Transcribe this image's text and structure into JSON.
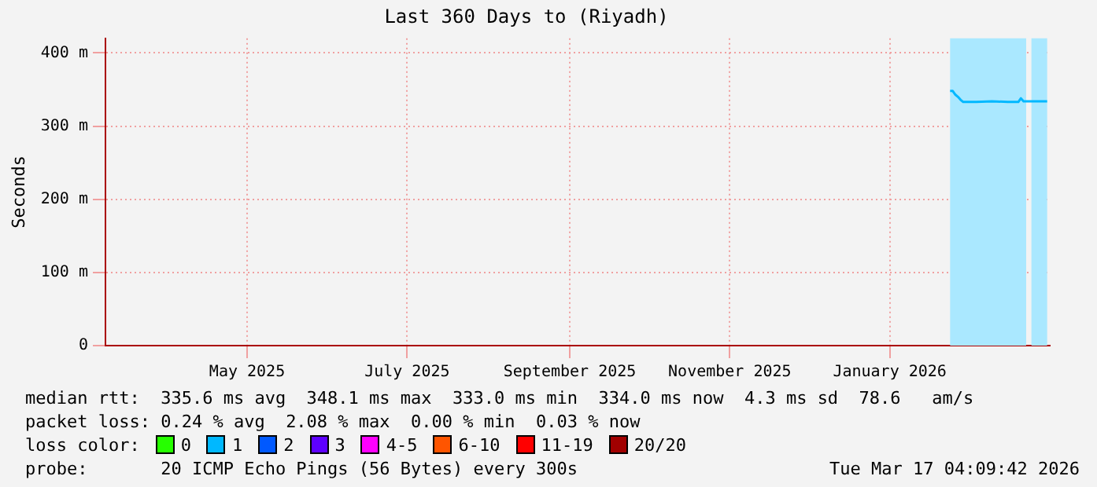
{
  "chart_data": {
    "type": "line",
    "title": "Last 360 Days to (Riyadh)",
    "ylabel": "Seconds",
    "legend_title": "loss color:",
    "legend": "bottom",
    "grid": true,
    "marker": "none",
    "xlim": [
      "2025-03-22",
      "2026-03-17"
    ],
    "xticks": [
      {
        "value": "2025-05-15",
        "label": "May 2025"
      },
      {
        "value": "2025-07-15",
        "label": "July 2025"
      },
      {
        "value": "2025-09-15",
        "label": "September 2025"
      },
      {
        "value": "2025-11-15",
        "label": "November 2025"
      },
      {
        "value": "2026-01-15",
        "label": "January 2026"
      }
    ],
    "ylim": [
      0,
      420
    ],
    "yticks": [
      0,
      {
        "value": 100,
        "label": "100 m"
      },
      {
        "value": 200,
        "label": "200 m"
      },
      {
        "value": 300,
        "label": "300 m"
      },
      {
        "value": 400,
        "label": "400 m"
      }
    ],
    "x": [
      "2026-02-07",
      "2026-02-08",
      "2026-02-09",
      "2026-02-10",
      "2026-02-11",
      "2026-02-12",
      "2026-02-17",
      "2026-02-23",
      "2026-03-01",
      "2026-03-05",
      "2026-03-06",
      "2026-03-07",
      "2026-03-08",
      "2026-03-11",
      "2026-03-16"
    ],
    "series": [
      {
        "name": "0",
        "color": "#26ff00",
        "values": [
          null,
          null,
          null,
          null,
          null,
          null,
          null,
          null,
          null,
          null,
          null,
          null,
          null,
          null,
          null
        ]
      },
      {
        "name": "1",
        "color": "#00b8ff",
        "values": [
          348,
          348,
          343,
          340,
          336,
          333,
          333,
          334,
          333,
          333,
          338,
          334,
          334,
          334,
          334
        ]
      },
      {
        "name": "2",
        "color": "#0059ff",
        "values": [
          null,
          null,
          null,
          null,
          null,
          null,
          null,
          null,
          null,
          null,
          null,
          null,
          null,
          null,
          null
        ]
      },
      {
        "name": "3",
        "color": "#5e00ff",
        "values": [
          null,
          null,
          null,
          null,
          null,
          null,
          null,
          null,
          null,
          null,
          null,
          null,
          null,
          null,
          null
        ]
      },
      {
        "name": "4-5",
        "color": "#ff00ff",
        "values": [
          null,
          null,
          null,
          null,
          null,
          null,
          null,
          null,
          null,
          null,
          null,
          null,
          null,
          null,
          null
        ]
      },
      {
        "name": "6-10",
        "color": "#ff5500",
        "values": [
          null,
          null,
          null,
          null,
          null,
          null,
          null,
          null,
          null,
          null,
          null,
          null,
          null,
          null,
          null
        ]
      },
      {
        "name": "11-19",
        "color": "#ff0000",
        "values": [
          null,
          null,
          null,
          null,
          null,
          null,
          null,
          null,
          null,
          null,
          null,
          null,
          null,
          null,
          null
        ]
      },
      {
        "name": "20/20",
        "color": "#a10000",
        "values": [
          null,
          null,
          null,
          null,
          null,
          null,
          null,
          null,
          null,
          null,
          null,
          null,
          null,
          null,
          null
        ]
      }
    ],
    "bands": [
      {
        "axis": "x",
        "from": "2026-02-07",
        "to": "2026-03-08",
        "color": "#aae8ff"
      },
      {
        "axis": "x",
        "from": "2026-03-10",
        "to": "2026-03-16",
        "color": "#aae8ff"
      }
    ],
    "annotations": [
      "median rtt:  335.6 ms avg  348.1 ms max  333.0 ms min  334.0 ms now  4.3 ms sd  78.6   am/s",
      "packet loss: 0.24 % avg  2.08 % max  0.00 % min  0.03 % now",
      "probe:       20 ICMP Echo Pings (56 Bytes) every 300s",
      "Tue Mar 17 04:09:42 2026"
    ]
  }
}
